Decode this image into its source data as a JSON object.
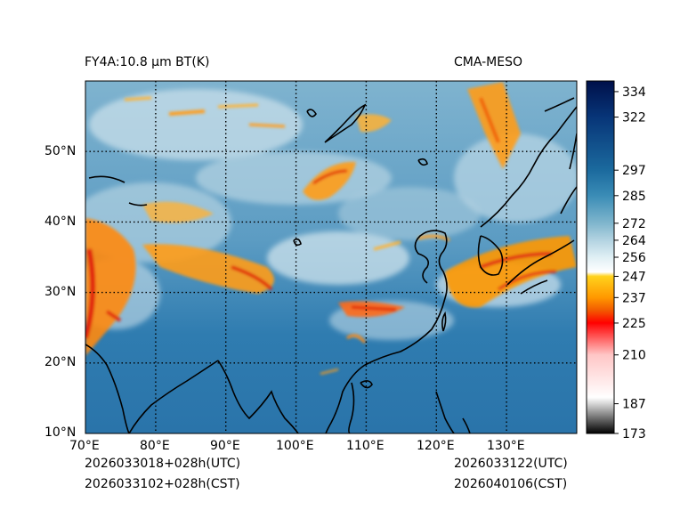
{
  "header": {
    "product_title": "FY4A:10.8 µm BT(K)",
    "model_name": "CMA-MESO"
  },
  "footer": {
    "init_utc": "2026033018+028h(UTC)",
    "init_cst": "2026033102+028h(CST)",
    "valid_utc": "2026033122(UTC)",
    "valid_cst": "2026040106(CST)"
  },
  "map": {
    "lon_range": [
      70,
      140
    ],
    "lat_range": [
      10,
      60
    ],
    "lon_ticks": [
      70,
      80,
      90,
      100,
      110,
      120,
      130
    ],
    "lat_ticks": [
      10,
      20,
      30,
      40,
      50
    ],
    "lon_labels": [
      "70°E",
      "80°E",
      "90°E",
      "100°E",
      "110°E",
      "120°E",
      "130°E"
    ],
    "lat_labels": [
      "10°N",
      "20°N",
      "30°N",
      "40°N",
      "50°N"
    ],
    "gridlines": "dotted"
  },
  "colorbar": {
    "min": 173,
    "max": 339,
    "ticks": [
      173,
      187,
      210,
      225,
      237,
      247,
      256,
      264,
      272,
      285,
      297,
      322,
      334
    ],
    "stops": [
      {
        "v": 173,
        "color": "#000000"
      },
      {
        "v": 187,
        "color": "#d6d6d6"
      },
      {
        "v": 190,
        "color": "#ffffff"
      },
      {
        "v": 210,
        "color": "#ffc6c6"
      },
      {
        "v": 224,
        "color": "#ff1010"
      },
      {
        "v": 225,
        "color": "#ff0000"
      },
      {
        "v": 231,
        "color": "#f25a00"
      },
      {
        "v": 237,
        "color": "#ff9800"
      },
      {
        "v": 247,
        "color": "#ffd21c"
      },
      {
        "v": 249,
        "color": "#ffffff"
      },
      {
        "v": 256,
        "color": "#dfeff4"
      },
      {
        "v": 264,
        "color": "#b3d3e1"
      },
      {
        "v": 272,
        "color": "#80b6cd"
      },
      {
        "v": 285,
        "color": "#3a8cb6"
      },
      {
        "v": 297,
        "color": "#1b6a9e"
      },
      {
        "v": 322,
        "color": "#073578"
      },
      {
        "v": 339,
        "color": "#00104a"
      }
    ]
  },
  "colors": {
    "ocean_warm": "#2b78ae",
    "land_mid": "#5f9ec2",
    "cloud_light": "#c4dce8",
    "cloud_cold": "#ff9c1a",
    "cloud_very_cold": "#e02010",
    "coastline": "#000000"
  }
}
